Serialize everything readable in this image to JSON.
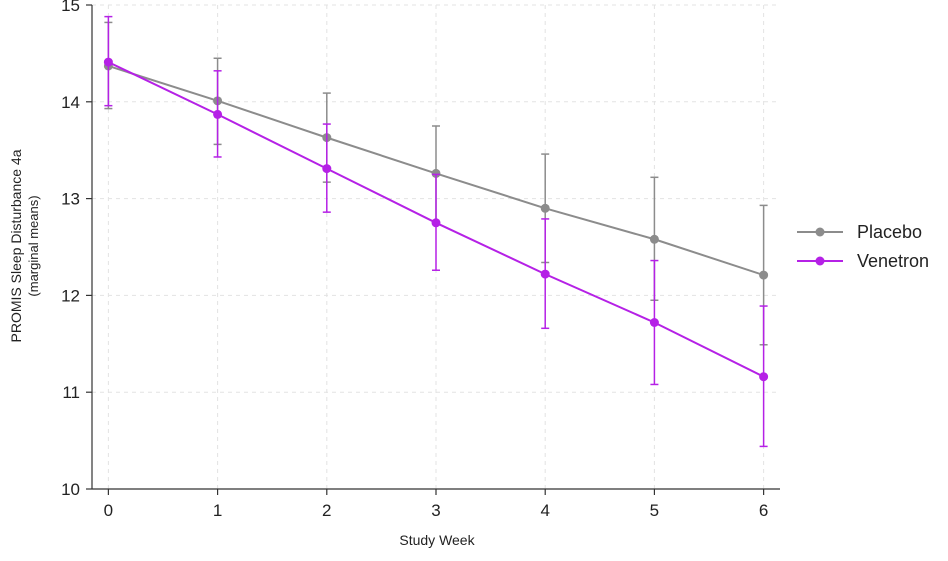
{
  "chart_data": {
    "type": "line",
    "title": "",
    "xlabel": "Study Week",
    "ylabel": "PROMIS Sleep Disturbance 4a",
    "ylabel_sub": "(marginal means)",
    "x": [
      0,
      1,
      2,
      3,
      4,
      5,
      6
    ],
    "x_ticks": [
      "0",
      "1",
      "2",
      "3",
      "4",
      "5",
      "6"
    ],
    "y_ticks": [
      "10",
      "11",
      "12",
      "13",
      "14",
      "15"
    ],
    "xlim": [
      -0.15,
      6.15
    ],
    "ylim": [
      10,
      15
    ],
    "grid": true,
    "legend_position": "right",
    "series": [
      {
        "name": "Placebo",
        "color": "#8c8c8c",
        "values": [
          14.37,
          14.01,
          13.63,
          13.26,
          12.9,
          12.58,
          12.21
        ],
        "ci_lower": [
          13.93,
          13.56,
          13.17,
          12.76,
          12.34,
          11.95,
          11.49
        ],
        "ci_upper": [
          14.82,
          14.45,
          14.09,
          13.75,
          13.46,
          13.22,
          12.93
        ]
      },
      {
        "name": "Venetron",
        "color": "#b521e6",
        "values": [
          14.41,
          13.87,
          13.31,
          12.75,
          12.22,
          11.72,
          11.16
        ],
        "ci_lower": [
          13.96,
          13.43,
          12.86,
          12.26,
          11.66,
          11.08,
          10.44
        ],
        "ci_upper": [
          14.88,
          14.32,
          13.77,
          13.25,
          12.79,
          12.36,
          11.89
        ]
      }
    ]
  }
}
